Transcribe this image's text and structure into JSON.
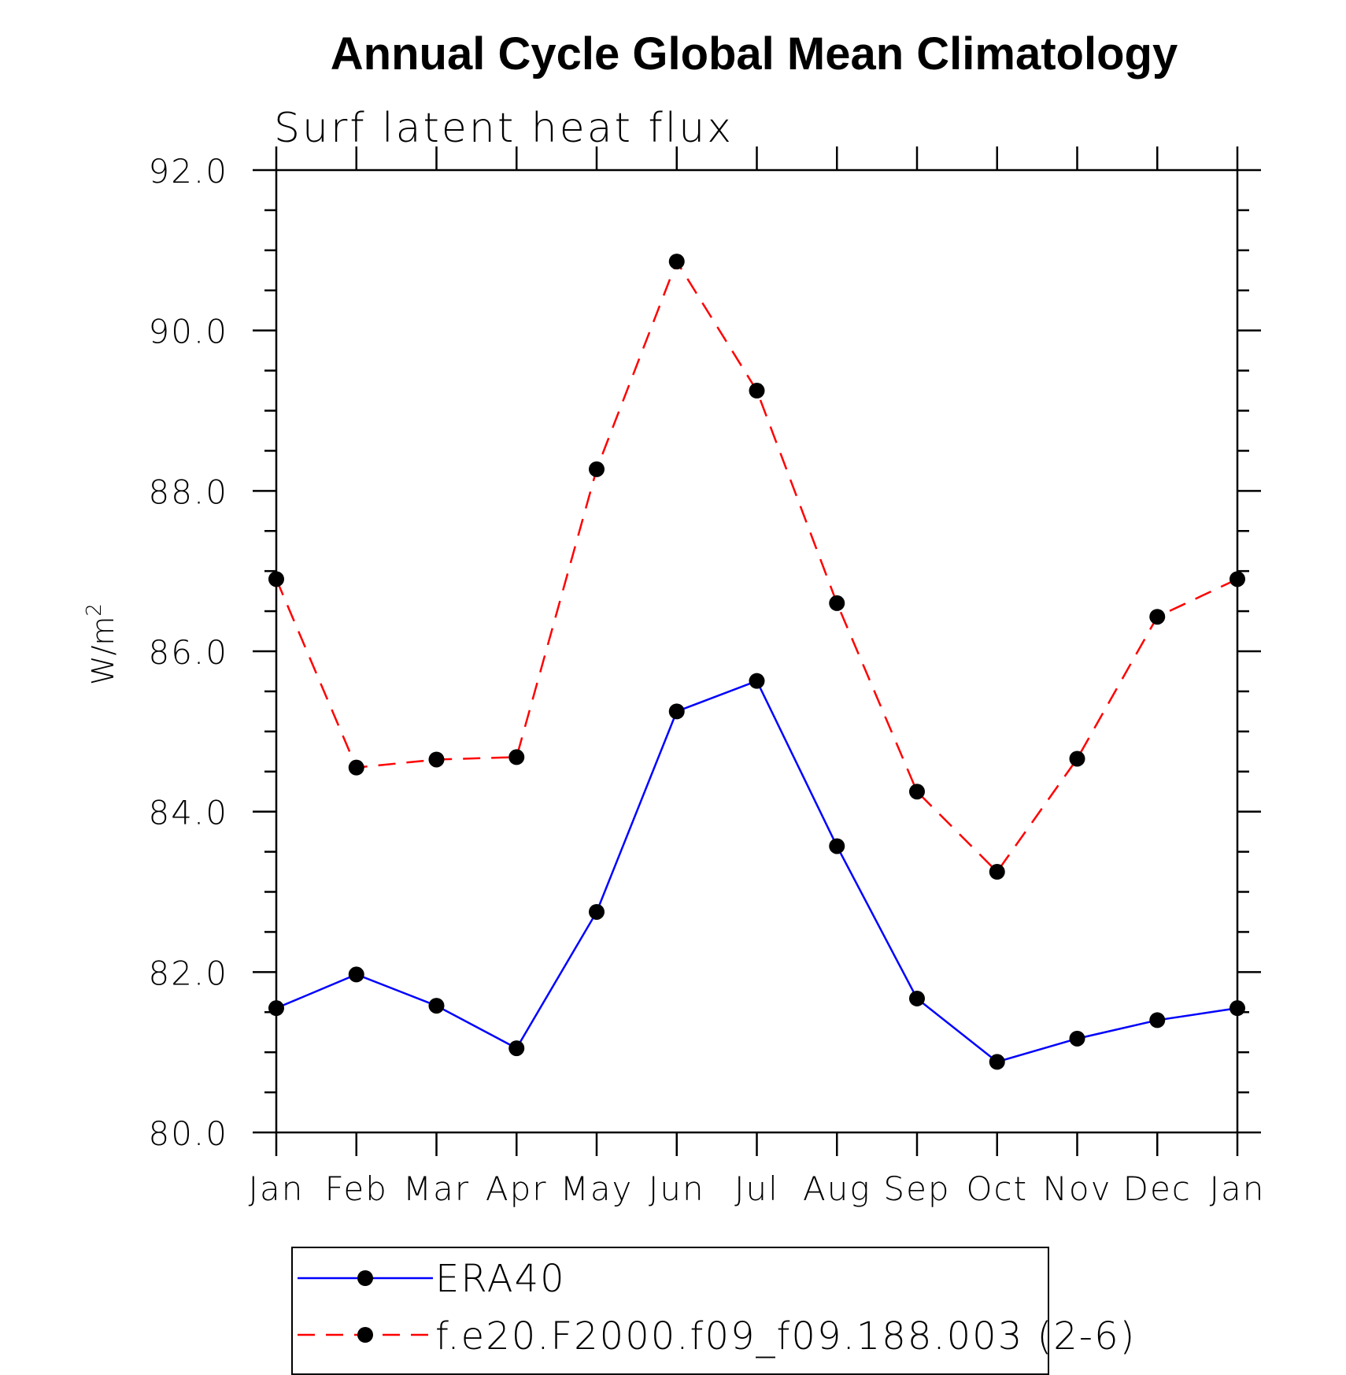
{
  "chart_data": {
    "type": "line",
    "title": "Annual Cycle Global Mean Climatology",
    "subtitle": "Surf latent heat flux",
    "ylabel_base": "W/m",
    "ylabel_sup": "2",
    "xlabel": "",
    "categories": [
      "Jan",
      "Feb",
      "Mar",
      "Apr",
      "May",
      "Jun",
      "Jul",
      "Aug",
      "Sep",
      "Oct",
      "Nov",
      "Dec",
      "Jan"
    ],
    "ylim": [
      80.0,
      92.0
    ],
    "yticks": [
      80.0,
      82.0,
      84.0,
      86.0,
      88.0,
      90.0,
      92.0
    ],
    "ytick_labels": [
      "80.0",
      "82.0",
      "84.0",
      "86.0",
      "88.0",
      "90.0",
      "92.0"
    ],
    "legend_position": "bottom",
    "series": [
      {
        "name": "ERA40",
        "color": "#0000ff",
        "style": "solid",
        "values": [
          81.55,
          81.97,
          81.58,
          81.05,
          82.75,
          85.25,
          85.63,
          83.57,
          81.67,
          80.88,
          81.17,
          81.4,
          81.55
        ]
      },
      {
        "name": "f.e20.F2000.f09_f09.188.003 (2-6)",
        "color": "#ff0000",
        "style": "dashed",
        "values": [
          86.9,
          84.55,
          84.65,
          84.68,
          88.27,
          90.86,
          89.25,
          86.6,
          84.25,
          83.25,
          84.66,
          86.43,
          86.9
        ]
      }
    ]
  }
}
